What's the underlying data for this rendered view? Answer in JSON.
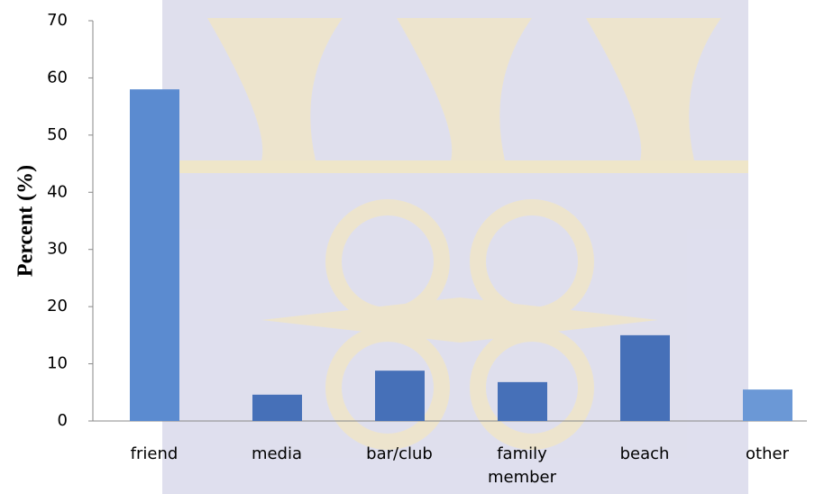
{
  "chart_data": {
    "type": "bar",
    "y_label": "Percent (%)",
    "categories": [
      "friend",
      "media",
      "bar/club",
      "family member",
      "beach",
      "other"
    ],
    "values": [
      58,
      4.6,
      8.8,
      6.8,
      15,
      5.5
    ],
    "colors": [
      "#5b8bd0",
      "#4670b8",
      "#4670b8",
      "#4670b8",
      "#4670b8",
      "#6b98d6"
    ],
    "ylim": [
      0,
      70
    ],
    "yticks": [
      0,
      10,
      20,
      30,
      40,
      50,
      60,
      70
    ],
    "grid": false
  }
}
